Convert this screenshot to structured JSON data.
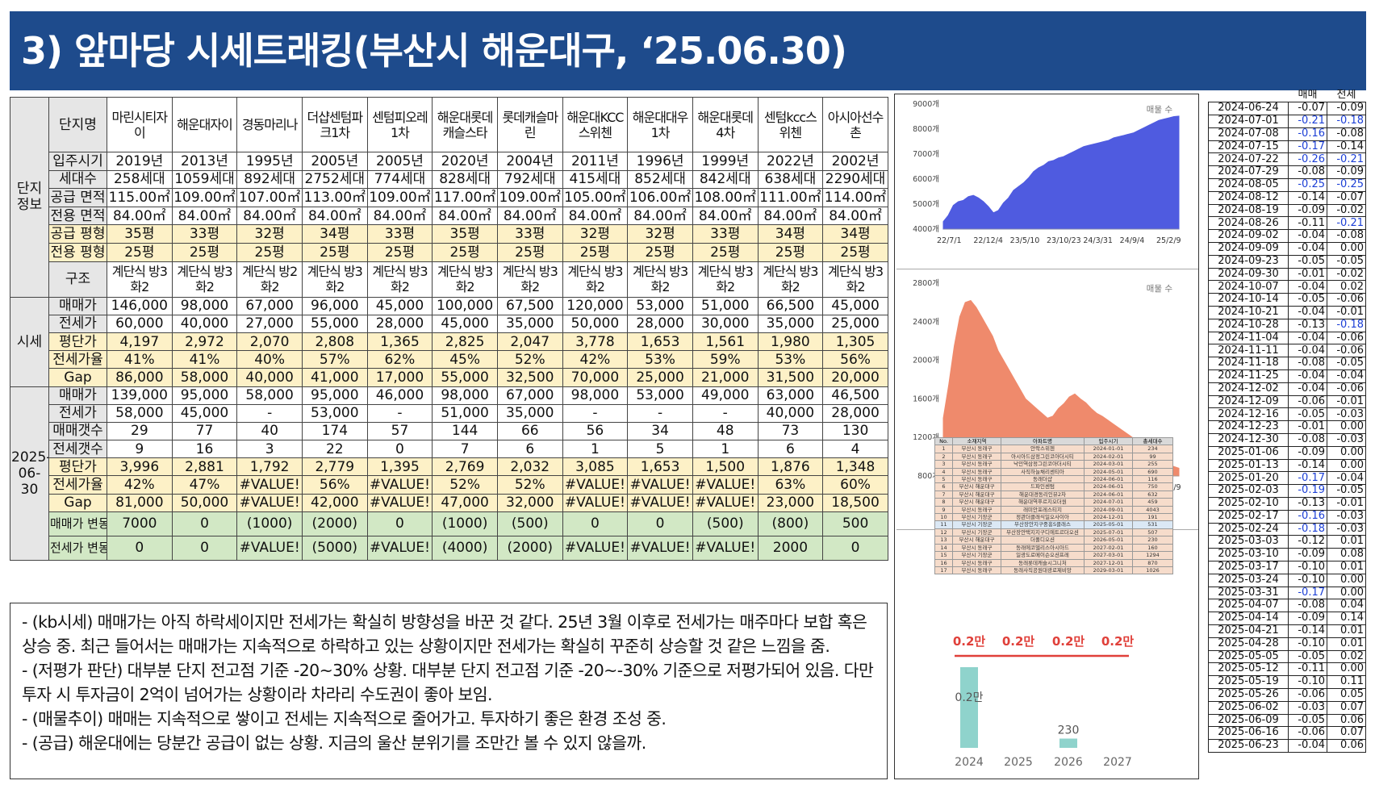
{
  "title": "3) 앞마당 시세트래킹(부산시 해운대구, ‘25.06.30)",
  "table": {
    "sections": {
      "info": "단지정보",
      "price": "시세",
      "date": "2025-06-30"
    },
    "header_label": "단지명",
    "complexes": [
      "마린시티자이",
      "해운대자이",
      "경동마리나",
      "더샵센텀파크1차",
      "센텀피오레1차",
      "해운대롯데캐슬스타",
      "롯데캐슬마린",
      "해운대KCC스위첸",
      "해운대대우1차",
      "해운대롯데4차",
      "센텀kcc스위첸",
      "아시아선수촌"
    ],
    "rows_info": [
      {
        "label": "입주시기",
        "values": [
          "2019년",
          "2013년",
          "1995년",
          "2005년",
          "2005년",
          "2020년",
          "2004년",
          "2011년",
          "1996년",
          "1999년",
          "2022년",
          "2002년"
        ]
      },
      {
        "label": "세대수",
        "values": [
          "258세대",
          "1059세대",
          "892세대",
          "2752세대",
          "774세대",
          "828세대",
          "792세대",
          "415세대",
          "852세대",
          "842세대",
          "638세대",
          "2290세대"
        ]
      },
      {
        "label": "공급 면적",
        "values": [
          "115.00㎡",
          "109.00㎡",
          "107.00㎡",
          "113.00㎡",
          "109.00㎡",
          "117.00㎡",
          "109.00㎡",
          "105.00㎡",
          "106.00㎡",
          "108.00㎡",
          "111.00㎡",
          "114.00㎡"
        ]
      },
      {
        "label": "전용 면적",
        "values": [
          "84.00㎡",
          "84.00㎡",
          "84.00㎡",
          "84.00㎡",
          "84.00㎡",
          "84.00㎡",
          "84.00㎡",
          "84.00㎡",
          "84.00㎡",
          "84.00㎡",
          "84.00㎡",
          "84.00㎡"
        ]
      },
      {
        "label": "공급 평형",
        "values": [
          "35평",
          "33평",
          "32평",
          "34평",
          "33평",
          "35평",
          "33평",
          "32평",
          "32평",
          "33평",
          "34평",
          "34평"
        ]
      },
      {
        "label": "전용 평형",
        "values": [
          "25평",
          "25평",
          "25평",
          "25평",
          "25평",
          "25평",
          "25평",
          "25평",
          "25평",
          "25평",
          "25평",
          "25평"
        ]
      },
      {
        "label": "구조",
        "values": [
          "계단식 방3화2",
          "계단식 방3화2",
          "계단식 방2화2",
          "계단식 방3화2",
          "계단식 방3화2",
          "계단식 방3화2",
          "계단식 방3화2",
          "계단식 방3화2",
          "계단식 방3화2",
          "계단식 방3화2",
          "계단식 방3화2",
          "계단식 방3화2"
        ]
      }
    ],
    "rows_price": [
      {
        "label": "매매가",
        "values": [
          "146,000",
          "98,000",
          "67,000",
          "96,000",
          "45,000",
          "100,000",
          "67,500",
          "120,000",
          "53,000",
          "51,000",
          "66,500",
          "45,000"
        ]
      },
      {
        "label": "전세가",
        "values": [
          "60,000",
          "40,000",
          "27,000",
          "55,000",
          "28,000",
          "45,000",
          "35,000",
          "50,000",
          "28,000",
          "30,000",
          "35,000",
          "25,000"
        ]
      },
      {
        "label": "평단가",
        "values": [
          "4,197",
          "2,972",
          "2,070",
          "2,808",
          "1,365",
          "2,825",
          "2,047",
          "3,778",
          "1,653",
          "1,561",
          "1,980",
          "1,305"
        ]
      },
      {
        "label": "전세가율",
        "values": [
          "41%",
          "41%",
          "40%",
          "57%",
          "62%",
          "45%",
          "52%",
          "42%",
          "53%",
          "59%",
          "53%",
          "56%"
        ]
      },
      {
        "label": "Gap",
        "values": [
          "86,000",
          "58,000",
          "40,000",
          "41,000",
          "17,000",
          "55,000",
          "32,500",
          "70,000",
          "25,000",
          "21,000",
          "31,500",
          "20,000"
        ]
      }
    ],
    "rows_date": [
      {
        "label": "매매가",
        "values": [
          "139,000",
          "95,000",
          "58,000",
          "95,000",
          "46,000",
          "98,000",
          "67,000",
          "98,000",
          "53,000",
          "49,000",
          "63,000",
          "46,500"
        ]
      },
      {
        "label": "전세가",
        "values": [
          "58,000",
          "45,000",
          "-",
          "53,000",
          "-",
          "51,000",
          "35,000",
          "-",
          "-",
          "-",
          "40,000",
          "28,000"
        ]
      },
      {
        "label": "매매갯수",
        "values": [
          "29",
          "77",
          "40",
          "174",
          "57",
          "144",
          "66",
          "56",
          "34",
          "48",
          "73",
          "130"
        ]
      },
      {
        "label": "전세갯수",
        "values": [
          "9",
          "16",
          "3",
          "22",
          "0",
          "7",
          "6",
          "1",
          "5",
          "1",
          "6",
          "4"
        ]
      },
      {
        "label": "평단가",
        "values": [
          "3,996",
          "2,881",
          "1,792",
          "2,779",
          "1,395",
          "2,769",
          "2,032",
          "3,085",
          "1,653",
          "1,500",
          "1,876",
          "1,348"
        ]
      },
      {
        "label": "전세가율",
        "values": [
          "42%",
          "47%",
          "#VALUE!",
          "56%",
          "#VALUE!",
          "52%",
          "52%",
          "#VALUE!",
          "#VALUE!",
          "#VALUE!",
          "63%",
          "60%"
        ]
      },
      {
        "label": "Gap",
        "values": [
          "81,000",
          "50,000",
          "#VALUE!",
          "42,000",
          "#VALUE!",
          "47,000",
          "32,000",
          "#VALUE!",
          "#VALUE!",
          "#VALUE!",
          "23,000",
          "18,500"
        ]
      }
    ],
    "rows_change": [
      {
        "label": "매매가 변동",
        "values": [
          "7000",
          "0",
          "(1000)",
          "(2000)",
          "0",
          "(1000)",
          "(500)",
          "0",
          "0",
          "(500)",
          "(800)",
          "500"
        ]
      },
      {
        "label": "전세가 변동",
        "values": [
          "0",
          "0",
          "#VALUE!",
          "(5000)",
          "#VALUE!",
          "(4000)",
          "(2000)",
          "#VALUE!",
          "#VALUE!",
          "#VALUE!",
          "2000",
          "0"
        ]
      }
    ]
  },
  "comments": [
    "- (kb시세) 매매가는 아직 하락세이지만 전세가는 확실히 방향성을 바꾼 것 같다. 25년 3월 이후로 전세가는 매주마다 보합 혹은 상승 중. 최근 들어서는 매매가는 지속적으로 하락하고 있는 상황이지만 전세가는 확실히 꾸준히 상승할 것 같은 느낌을 줌.",
    "- (저평가 판단) 대부분 단지 전고점 기준 -20~30% 상황. 대부분 단지 전고점 기준 -20~-30% 기준으로 저평가되어 있음. 다만 투자 시 투자금이 2억이 넘어가는 상황이라 차라리 수도권이 좋아 보임.",
    "- (매물추이) 매매는 지속적으로 쌓이고 전세는 지속적으로 줄어가고. 투자하기 좋은 환경 조성 중.",
    "- (공급) 해운대에는 당분간 공급이 없는 상황. 지금의 울산 분위기를 조만간 볼 수 있지 않을까."
  ],
  "chart_data": [
    {
      "type": "area",
      "series": [
        {
          "name": "매물 수"
        }
      ],
      "x_ticks": [
        "22/7/1",
        "22/12/4",
        "23/5/10",
        "23/10/23",
        "24/3/31",
        "24/9/4",
        "25/2/9"
      ],
      "y_ticks": [
        "4000개",
        "5000개",
        "6000개",
        "7000개",
        "8000개",
        "9000개"
      ],
      "ylim": [
        4000,
        9000
      ],
      "color": "#4f5be0",
      "values": [
        4300,
        4550,
        4950,
        5100,
        5150,
        5300,
        5350,
        5250,
        5100,
        4900,
        4650,
        4750,
        5050,
        5250,
        5550,
        5700,
        5850,
        6050,
        6300,
        6450,
        6550,
        6700,
        6750,
        6850,
        6900,
        7000,
        7100,
        7200,
        7300,
        7350,
        7400,
        7450,
        7500,
        7550,
        7650,
        7700,
        7750,
        7800,
        7850,
        7950,
        8050,
        8150,
        8250,
        8350,
        8400,
        8450,
        8500,
        8520
      ]
    },
    {
      "type": "area",
      "series": [
        {
          "name": "매물 수"
        }
      ],
      "x_ticks": [
        "22/7/1",
        "22/12/4",
        "23/5/10",
        "23/10/23",
        "24/3/31",
        "24/9/4",
        "25/2/9"
      ],
      "y_ticks": [
        "800개",
        "1200개",
        "1600개",
        "2000개",
        "2400개",
        "2800개"
      ],
      "ylim": [
        800,
        2800
      ],
      "color": "#ef8a6c",
      "values": [
        1400,
        1750,
        2150,
        2450,
        2600,
        2620,
        2550,
        2450,
        2350,
        2250,
        2100,
        2000,
        1900,
        1800,
        1700,
        1600,
        1550,
        1500,
        1450,
        1400,
        1420,
        1500,
        1550,
        1620,
        1650,
        1600,
        1560,
        1500,
        1450,
        1420,
        1380,
        1340,
        1300,
        1260,
        1220,
        1180,
        1140,
        1100,
        1060,
        1020,
        980,
        940,
        900,
        880
      ]
    },
    {
      "type": "bar",
      "categories": [
        "2024",
        "2025",
        "2026",
        "2027"
      ],
      "values": [
        2000,
        0,
        230,
        0
      ],
      "bar_labels": [
        "0.2만",
        "",
        "230",
        ""
      ],
      "top_labels": [
        "0.2만",
        "0.2만",
        "0.2만",
        "0.2만"
      ],
      "color": "#8fd3cc",
      "line_color": "#e0403a"
    }
  ],
  "supply_table": {
    "headers": [
      "No.",
      "소재지역",
      "아파트명",
      "입주시기",
      "총세대수"
    ],
    "rows": [
      [
        "1",
        "부산시 동래구",
        "안락스위첸",
        "2024-01-01",
        "234"
      ],
      [
        "2",
        "부산시 동래구",
        "아시아드삼정그린코아더시티",
        "2024-02-01",
        "99"
      ],
      [
        "3",
        "부산시 동래구",
        "낙민역삼정그린코아더시티",
        "2024-03-01",
        "255"
      ],
      [
        "4",
        "부산시 동래구",
        "사직하늘채리센티아",
        "2024-05-01",
        "690"
      ],
      [
        "5",
        "부산시 동래구",
        "동래더샵",
        "2024-06-01",
        "116"
      ],
      [
        "6",
        "부산시 해운대구",
        "드파인센텀",
        "2024-06-01",
        "750"
      ],
      [
        "7",
        "부산시 해운대구",
        "해운대경동리인뷰2차",
        "2024-06-01",
        "632"
      ],
      [
        "8",
        "부산시 해운대구",
        "해운대역푸르지오더원",
        "2024-07-01",
        "459"
      ],
      [
        "9",
        "부산시 동래구",
        "래미안포레스티지",
        "2024-09-01",
        "4043"
      ],
      [
        "10",
        "부산시 기장군",
        "정관더클래식일오사이아",
        "2024-12-01",
        "191"
      ],
      [
        "11",
        "부산시 기장군",
        "부산장안지구중흥S클래스",
        "2025-05-01",
        "531"
      ],
      [
        "12",
        "부산시 기장군",
        "부산장안택지지구디에트르더오션",
        "2025-07-01",
        "507"
      ],
      [
        "13",
        "부산시 해운대구",
        "더폴디오션",
        "2026-05-01",
        "230"
      ],
      [
        "14",
        "부산시 동래구",
        "동래에코델리스아시아드",
        "2027-02-01",
        "160"
      ],
      [
        "15",
        "부산시 기장군",
        "일광도로메이슨오션프레",
        "2027-03-01",
        "1294"
      ],
      [
        "16",
        "부산시 동래구",
        "동래롯데캐슬시그니처",
        "2027-12-01",
        "870"
      ],
      [
        "17",
        "부산시 동래구",
        "동래사직공원대광로제비앙",
        "2029-03-01",
        "1026"
      ]
    ]
  },
  "kb_weekly": {
    "headers": [
      "매매",
      "전세"
    ],
    "rows": [
      [
        "2024-06-24",
        "-0.07",
        "-0.09"
      ],
      [
        "2024-07-01",
        "-0.21",
        "-0.18"
      ],
      [
        "2024-07-08",
        "-0.16",
        "-0.08"
      ],
      [
        "2024-07-15",
        "-0.17",
        "-0.14"
      ],
      [
        "2024-07-22",
        "-0.26",
        "-0.21"
      ],
      [
        "2024-07-29",
        "-0.08",
        "-0.09"
      ],
      [
        "2024-08-05",
        "-0.25",
        "-0.25"
      ],
      [
        "2024-08-12",
        "-0.14",
        "-0.07"
      ],
      [
        "2024-08-19",
        "-0.09",
        "-0.02"
      ],
      [
        "2024-08-26",
        "-0.11",
        "-0.21"
      ],
      [
        "2024-09-02",
        "-0.04",
        "-0.08"
      ],
      [
        "2024-09-09",
        "-0.04",
        "0.00"
      ],
      [
        "2024-09-23",
        "-0.05",
        "-0.05"
      ],
      [
        "2024-09-30",
        "-0.01",
        "-0.02"
      ],
      [
        "2024-10-07",
        "-0.04",
        "0.02"
      ],
      [
        "2024-10-14",
        "-0.05",
        "-0.06"
      ],
      [
        "2024-10-21",
        "-0.04",
        "-0.01"
      ],
      [
        "2024-10-28",
        "-0.13",
        "-0.18"
      ],
      [
        "2024-11-04",
        "-0.04",
        "-0.06"
      ],
      [
        "2024-11-11",
        "-0.04",
        "-0.06"
      ],
      [
        "2024-11-18",
        "-0.08",
        "-0.05"
      ],
      [
        "2024-11-25",
        "-0.04",
        "-0.04"
      ],
      [
        "2024-12-02",
        "-0.04",
        "-0.06"
      ],
      [
        "2024-12-09",
        "-0.06",
        "-0.01"
      ],
      [
        "2024-12-16",
        "-0.05",
        "-0.03"
      ],
      [
        "2024-12-23",
        "-0.01",
        "0.00"
      ],
      [
        "2024-12-30",
        "-0.08",
        "-0.03"
      ],
      [
        "2025-01-06",
        "-0.09",
        "0.00"
      ],
      [
        "2025-01-13",
        "-0.14",
        "0.00"
      ],
      [
        "2025-01-20",
        "-0.17",
        "-0.04"
      ],
      [
        "2025-02-03",
        "-0.19",
        "-0.05"
      ],
      [
        "2025-02-10",
        "-0.13",
        "-0.01"
      ],
      [
        "2025-02-17",
        "-0.16",
        "-0.03"
      ],
      [
        "2025-02-24",
        "-0.18",
        "-0.03"
      ],
      [
        "2025-03-03",
        "-0.12",
        "0.01"
      ],
      [
        "2025-03-10",
        "-0.09",
        "0.08"
      ],
      [
        "2025-03-17",
        "-0.10",
        "0.01"
      ],
      [
        "2025-03-24",
        "-0.10",
        "0.00"
      ],
      [
        "2025-03-31",
        "-0.17",
        "0.00"
      ],
      [
        "2025-04-07",
        "-0.08",
        "0.04"
      ],
      [
        "2025-04-14",
        "-0.09",
        "0.14"
      ],
      [
        "2025-04-21",
        "-0.14",
        "0.01"
      ],
      [
        "2025-04-28",
        "-0.10",
        "0.01"
      ],
      [
        "2025-05-05",
        "-0.05",
        "0.02"
      ],
      [
        "2025-05-12",
        "-0.11",
        "0.00"
      ],
      [
        "2025-05-19",
        "-0.10",
        "0.11"
      ],
      [
        "2025-05-26",
        "-0.06",
        "0.05"
      ],
      [
        "2025-06-02",
        "-0.03",
        "0.07"
      ],
      [
        "2025-06-09",
        "-0.05",
        "0.06"
      ],
      [
        "2025-06-16",
        "-0.06",
        "0.07"
      ],
      [
        "2025-06-23",
        "-0.04",
        "0.06"
      ]
    ]
  }
}
